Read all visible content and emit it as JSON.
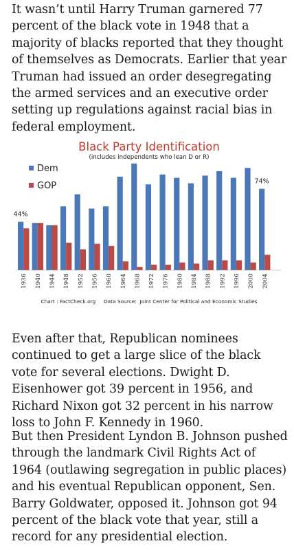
{
  "article": {
    "paragraph_1": "It wasn’t until Harry Truman garnered 77 percent of the black vote in 1948 that a majority of blacks reported that they thought of themselves as Democrats. Earlier that year Truman had issued an order desegregating the armed services and an executive order setting up regulations against racial bias in federal employment.",
    "paragraph_2": "Even after that, Republican nominees continued to get a large slice of the black vote for several elections. Dwight D. Eisenhower got 39 percent in 1956, and Richard Nixon got 32 percent in his narrow loss to John F. Kennedy in 1960.",
    "paragraph_3": "But then President Lyndon B. Johnson pushed through the landmark Civil Rights Act of 1964 (outlawing segregation in public places) and his eventual Republican opponent, Sen. Barry Goldwater, opposed it. Johnson got 94 percent of the black vote that year, still a record for any presidential election."
  },
  "chart_data": {
    "type": "bar",
    "title": "Black Party Identification",
    "subtitle": "(includes independents who lean D or R)",
    "categories": [
      "1936",
      "1940",
      "1944",
      "1948",
      "1952",
      "1956",
      "1960",
      "1964",
      "1968",
      "1972",
      "1976",
      "1980",
      "1984",
      "1988",
      "1992",
      "1996",
      "2000",
      "2004"
    ],
    "series": [
      {
        "name": "Dem",
        "color": "#4a78b8",
        "values": [
          44,
          43,
          41,
          58,
          69,
          56,
          58,
          85,
          97,
          78,
          87,
          84,
          79,
          86,
          90,
          84,
          93,
          74
        ]
      },
      {
        "name": "GOP",
        "color": "#b94a48",
        "values": [
          38,
          43,
          41,
          25,
          19,
          24,
          22,
          8,
          3,
          5,
          5,
          7,
          6,
          9,
          9,
          9,
          7,
          14
        ]
      }
    ],
    "data_labels": [
      {
        "category": "1936",
        "series": "Dem",
        "text": "44%"
      },
      {
        "category": "2004",
        "series": "Dem",
        "text": "74%"
      }
    ],
    "ylim": [
      0,
      100
    ],
    "legend": "top-left",
    "grid": false,
    "footer": "Chart : FactCheck.org     Data Source:  Joint Center for Political and Economic Studies"
  }
}
